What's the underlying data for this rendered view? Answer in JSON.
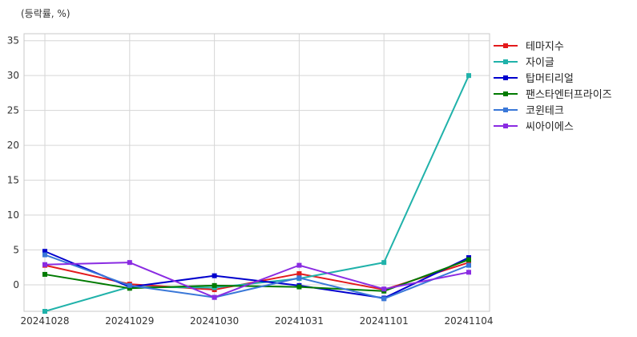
{
  "unit_label": "(등락률, %)",
  "chart_data": {
    "type": "line",
    "title": "",
    "xlabel": "",
    "ylabel": "",
    "x": [
      "20241028",
      "20241029",
      "20241030",
      "20241031",
      "20241101",
      "20241104"
    ],
    "ylim": [
      -3.8,
      36
    ],
    "yticks": [
      0,
      5,
      10,
      15,
      20,
      25,
      30,
      35
    ],
    "grid": true,
    "legend_position": "right-top",
    "series": [
      {
        "name": "테마지수",
        "color": "#e31a1c",
        "values": [
          2.8,
          0.1,
          -0.7,
          1.6,
          -0.7,
          3.2
        ]
      },
      {
        "name": "자이글",
        "color": "#20b2aa",
        "values": [
          -3.8,
          -0.3,
          -0.4,
          0.9,
          3.2,
          30.0
        ]
      },
      {
        "name": "탑머티리얼",
        "color": "#0000cd",
        "values": [
          4.8,
          -0.3,
          1.3,
          -0.1,
          -1.9,
          3.9
        ]
      },
      {
        "name": "팬스타엔터프라이즈",
        "color": "#007a00",
        "values": [
          1.5,
          -0.5,
          -0.1,
          -0.3,
          -0.9,
          3.6
        ]
      },
      {
        "name": "코윈테크",
        "color": "#3a78d8",
        "values": [
          4.3,
          -0.1,
          -1.8,
          1.0,
          -2.0,
          2.8
        ]
      },
      {
        "name": "씨아이에스",
        "color": "#8a2be2",
        "values": [
          2.9,
          3.2,
          -1.8,
          2.8,
          -0.6,
          1.8
        ]
      }
    ]
  }
}
